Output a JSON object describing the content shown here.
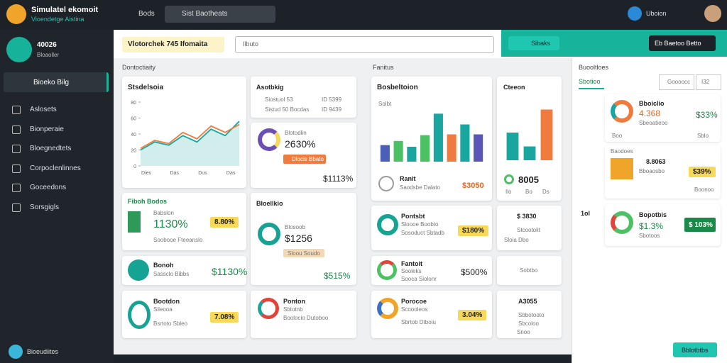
{
  "app": {
    "title": "Simulatel ekomoit",
    "subtitle": "Vioendetge Aistina"
  },
  "topbar": {
    "nav": "Bods",
    "search": "Sist Baotheats",
    "user": "Uboion"
  },
  "sidebar": {
    "account": "40026",
    "account_sub": "Bloaoller",
    "active": "Bioeko Bilg",
    "items": [
      "Aslosets",
      "Bionperaie",
      "Bloegnedtets",
      "Corpoclenlinnes",
      "Goceedons",
      "Sorsgigls"
    ],
    "footer": "Bioeudiites"
  },
  "header": {
    "badge": "Vlotorchek 745 Ifomaita",
    "search": "Ilbuto",
    "action": "Sibaks",
    "button": "Eb Baetoo Betto"
  },
  "sections": [
    "Dontoctiaity",
    "Fanitus",
    "Buooltloes"
  ],
  "line_card": {
    "title": "Stsdelsoia",
    "chart_data": {
      "type": "line",
      "categories": [
        "Dies",
        null,
        "Das",
        null,
        "Dus",
        null,
        "Das",
        null
      ],
      "ylim": [
        0,
        80
      ],
      "yticks": [
        0,
        20,
        40,
        60,
        80
      ],
      "grid": false,
      "series": [
        {
          "name": "A",
          "color": "#1aa6a0",
          "values": [
            20,
            30,
            26,
            38,
            30,
            46,
            38,
            56
          ]
        },
        {
          "name": "B",
          "color": "#f07b3f",
          "values": [
            22,
            32,
            28,
            42,
            34,
            50,
            42,
            52
          ]
        }
      ]
    }
  },
  "cards": {
    "assets": {
      "title": "Asotbkig",
      "rows": [
        "Siostuol 53",
        "ID 5399",
        "Sistud 50 Bocdas",
        "ID 9439"
      ]
    },
    "block": {
      "title": "Blotodlin",
      "value": "2630%",
      "tag": "Dlocis Bbato",
      "total": "$1113%"
    },
    "fiboh": {
      "title": "Fiboh Bodos",
      "label": "Babslon",
      "value": "1130%",
      "badge": "8.80%",
      "note": "Soobooe Fteeanslo"
    },
    "bloell": {
      "title": "Bloellkio",
      "label": "Blosoob",
      "value": "$1256",
      "tag": "Sloou Soudo",
      "total": "$515%"
    },
    "bonoh": {
      "title": "Bonoh",
      "label": "Sassclo Bibbs",
      "value": "$1130%"
    },
    "boot": {
      "title": "Bootdon",
      "label": "Sileooa",
      "note": "Bsrtoto Sbleo",
      "badge": "7.08%"
    },
    "ponton": {
      "title": "Ponton",
      "label": "Sbtotnb",
      "note": "Boolocio Dutoboo"
    },
    "pontsbt": {
      "title": "Pontsbt",
      "label": "Sloooe Boobto",
      "note": "Sosoduct Sbtadb",
      "badge": "$180%"
    },
    "fantoit": {
      "title": "Fantoit",
      "label": "Sooleks",
      "note": "Sooca Siolonr",
      "value": "$500%"
    },
    "porocoe": {
      "title": "Porocoe",
      "label": "Scoooleos",
      "note": "Sbrtob Dtboiu",
      "badge": "3.04%"
    },
    "stc": {
      "value": "$ 3830",
      "label": "Stcootolit",
      "a": "Sloia",
      "b": "Dbo"
    },
    "sob": {
      "label": "Sobtbo"
    },
    "a30": {
      "value": "A3055",
      "label": "Sbbotooto",
      "a": "Sbcoloo",
      "b": "Snoo"
    }
  },
  "bar_card": {
    "title": "Bosbeltoion",
    "sub": "Solbt",
    "foot_title": "Ranit",
    "foot_note": "Saodsbe Dalato",
    "foot_value": "$3050",
    "chart_data": {
      "type": "bar",
      "ylim": [
        0,
        60
      ],
      "values": [
        20,
        25,
        18,
        32,
        58,
        33,
        45,
        33
      ],
      "colors": [
        "#4a5fb5",
        "#4cc163",
        "#1aa6a0",
        "#4cc163",
        "#1aa6a0",
        "#f07b3f",
        "#1aa6a0",
        "#5a56b5"
      ]
    }
  },
  "bar_card2": {
    "title": "Cteeon",
    "value": "8005",
    "a": "Ilo",
    "b": "Bo",
    "c": "Ds",
    "chart_data": {
      "type": "bar",
      "ylim": [
        0,
        60
      ],
      "values": [
        30,
        15,
        55
      ],
      "colors": [
        "#1aa6a0",
        "#1aa6a0",
        "#f07b3f"
      ]
    }
  },
  "right": {
    "tabs": [
      "Sbotioo",
      "Goooocc",
      "I32"
    ],
    "side": "1ol",
    "r1": {
      "title": "Bboiclio",
      "value": "4.368",
      "note": "Sbeoatieoo",
      "pct": "$33%",
      "a": "Boo",
      "b": "Sblo"
    },
    "r2": {
      "title": "Baodoes",
      "value": "8.8063",
      "note": "Bboaosbo",
      "pct": "$39%",
      "c": "Boonoo"
    },
    "r3": {
      "title": "Bopotbis",
      "value": "$1.3%",
      "note": "Sbotoos",
      "badge": "$ 103%"
    },
    "footer": "Bblotbtbs"
  }
}
